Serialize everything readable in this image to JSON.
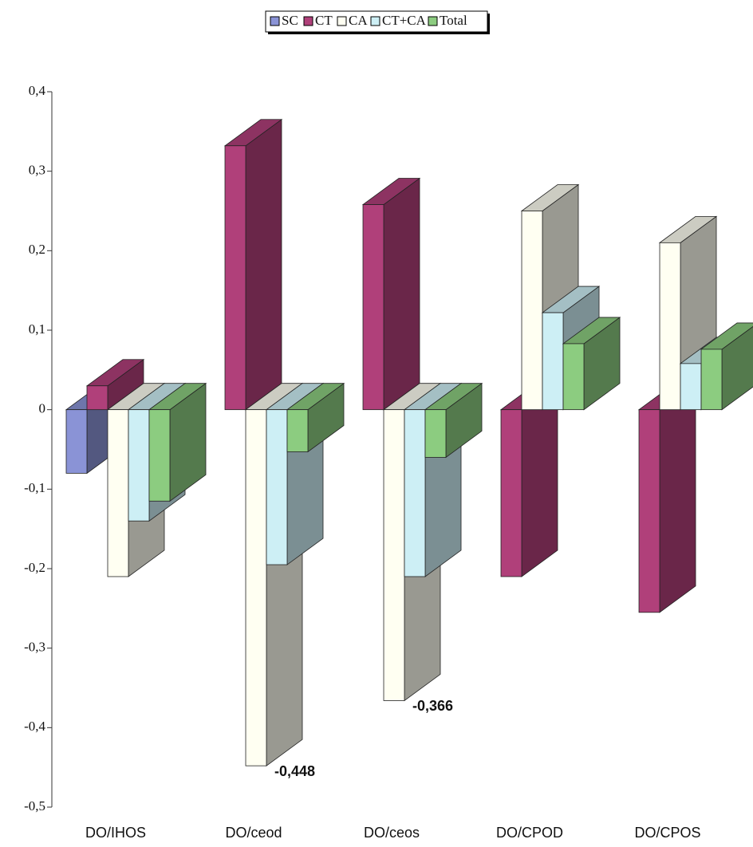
{
  "chart_data": {
    "type": "bar",
    "categories": [
      "DO/IHOS",
      "DO/ceod",
      "DO/ceos",
      "DO/CPOD",
      "DO/CPOS"
    ],
    "series": [
      {
        "name": "SC",
        "color": "#8a93d6",
        "values": [
          -0.08,
          null,
          null,
          null,
          null
        ]
      },
      {
        "name": "CT",
        "color": "#b0407a",
        "values": [
          0.03,
          0.332,
          0.258,
          -0.21,
          -0.255
        ]
      },
      {
        "name": "CA",
        "color": "#fffff2",
        "values": [
          -0.21,
          -0.448,
          -0.366,
          0.25,
          0.21
        ],
        "value_labels": [
          null,
          "-0,448",
          "-0,366",
          null,
          null
        ]
      },
      {
        "name": "CT+CA",
        "color": "#cdeff5",
        "values": [
          -0.14,
          -0.195,
          -0.21,
          0.122,
          0.058
        ]
      },
      {
        "name": "Total",
        "color": "#8ccc80",
        "values": [
          -0.115,
          -0.053,
          -0.06,
          0.083,
          0.076
        ]
      }
    ],
    "ylim": [
      -0.5,
      0.4
    ],
    "yticks": [
      {
        "value": 0.4,
        "label": "0,4"
      },
      {
        "value": 0.3,
        "label": "0,3"
      },
      {
        "value": 0.2,
        "label": "0,2"
      },
      {
        "value": 0.1,
        "label": "0,1"
      },
      0,
      {
        "value": -0.1,
        "label": "-0,1"
      },
      {
        "value": -0.2,
        "label": "-0,2"
      },
      {
        "value": -0.3,
        "label": "-0,3"
      },
      {
        "value": -0.4,
        "label": "-0,4"
      },
      {
        "value": -0.5,
        "label": "-0,5"
      }
    ],
    "grid": false,
    "legend": "top"
  }
}
